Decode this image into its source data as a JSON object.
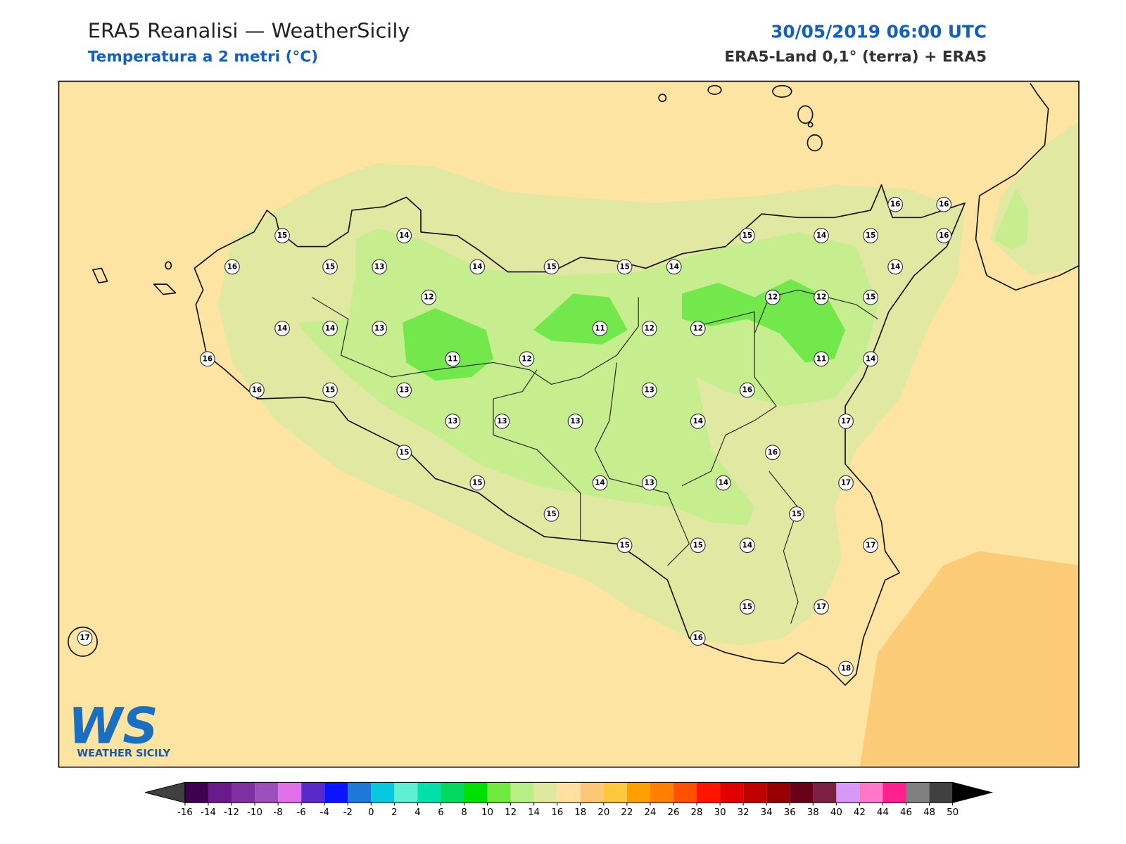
{
  "header": {
    "title": "ERA5 Reanalisi — WeatherSicily",
    "subtitle": "Temperatura a 2 metri (°C)",
    "date": "30/05/2019 06:00 UTC",
    "source": "ERA5-Land 0,1° (terra) + ERA5"
  },
  "stations": [
    15,
    14,
    16,
    15,
    13,
    14,
    15,
    15,
    14,
    15,
    14,
    15,
    16,
    16,
    16,
    14,
    12,
    12,
    12,
    15,
    14,
    14,
    13,
    11,
    12,
    12,
    16,
    11,
    12,
    11,
    14,
    16,
    15,
    13,
    13,
    16,
    13,
    13,
    13,
    14,
    17,
    15,
    16,
    15,
    14,
    13,
    14,
    17,
    15,
    15,
    15,
    15,
    14,
    17,
    15,
    17,
    16,
    17,
    18
  ],
  "colorbar": {
    "ticks": [
      -16,
      -14,
      -12,
      -10,
      -8,
      -6,
      -4,
      -2,
      0,
      2,
      4,
      6,
      8,
      10,
      12,
      14,
      16,
      18,
      20,
      22,
      24,
      26,
      28,
      30,
      32,
      34,
      36,
      38,
      40,
      42,
      44,
      46,
      48,
      50
    ],
    "colors": [
      "#3f0050",
      "#6a1a8a",
      "#7e2fa0",
      "#9b4fba",
      "#e070e6",
      "#5a2ac8",
      "#0a14ff",
      "#1e78d8",
      "#08c8e0",
      "#5ef0d0",
      "#00e0a8",
      "#00d860",
      "#00e000",
      "#70e840",
      "#b8ee88",
      "#e0e8a0",
      "#ffe0a0",
      "#fcc878",
      "#fcc840",
      "#ffa000",
      "#ff8000",
      "#ff5000",
      "#ff1400",
      "#e00000",
      "#c00000",
      "#980000",
      "#6a0018",
      "#7a2040",
      "#d898f8",
      "#ff78c8",
      "#ff2090",
      "#808080",
      "#404040"
    ]
  },
  "logo": {
    "mark": "WS",
    "caption": "WEATHER SICILY"
  }
}
